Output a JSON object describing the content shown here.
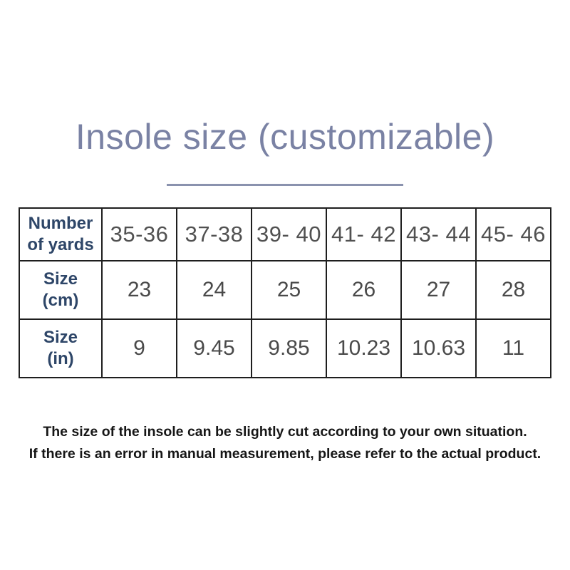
{
  "title": "Insole size (customizable)",
  "table": {
    "rows": [
      {
        "header": "Number\nof yards",
        "cells": [
          "35-36",
          "37-38",
          "39- 40",
          "41- 42",
          "43- 44",
          "45- 46"
        ]
      },
      {
        "header": "Size\n(cm)",
        "cells": [
          "23",
          "24",
          "25",
          "26",
          "27",
          "28"
        ]
      },
      {
        "header": "Size\n(in)",
        "cells": [
          "9",
          "9.45",
          "9.85",
          "10.23",
          "10.63",
          "11"
        ]
      }
    ]
  },
  "footer": {
    "line1": "The size of the insole can be slightly cut according to your own situation.",
    "line2": "If there is an error in manual measurement, please refer to the actual product."
  },
  "colors": {
    "background": "#ffffff",
    "title_text": "#7a82a4",
    "divider": "#8a92ae",
    "row_header_text": "#2e4668",
    "cell_text": "#4a4a4a",
    "table_border": "#1e1e1e",
    "footer_text": "#161616"
  }
}
